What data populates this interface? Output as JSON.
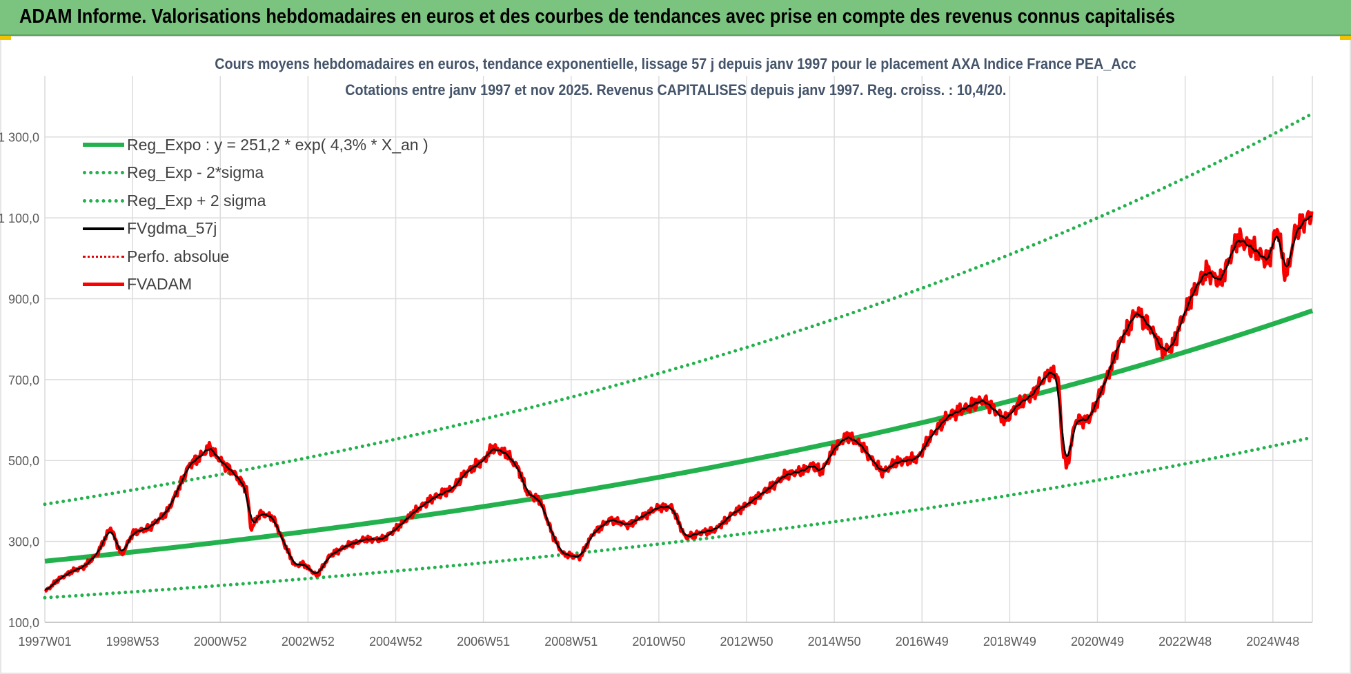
{
  "banner": {
    "title": "ADAM Informe. Valorisations hebdomadaires en euros et des courbes de tendances avec prise en compte des revenus connus capitalisés"
  },
  "chart_data": {
    "type": "line",
    "title": "Cours moyens hebdomadaires en euros, tendance exponentielle, lissage 57 j depuis janv 1997 pour le placement AXA Indice France PEA_Acc",
    "subtitle": "Cotations entre janv 1997 et nov 2025. Revenus CAPITALISES depuis janv 1997. Reg. croiss. : 10,4/20.",
    "xlabel": "",
    "ylabel": "",
    "x_range": [
      1997.0,
      2025.9
    ],
    "ylim": [
      100,
      1400
    ],
    "yticks": [
      100,
      300,
      500,
      700,
      900,
      1100,
      1300
    ],
    "ytick_labels": [
      "100,0",
      "300,0",
      "500,0",
      "700,0",
      "900,0",
      "1 100,0",
      "1 300,0"
    ],
    "xtick_positions": [
      1997.0,
      1999.0,
      2001.0,
      2003.0,
      2005.0,
      2007.0,
      2009.0,
      2011.0,
      2013.0,
      2015.0,
      2017.0,
      2019.0,
      2021.0,
      2023.0,
      2025.0
    ],
    "xtick_labels": [
      "1997W01",
      "1998W53",
      "2000W52",
      "2002W52",
      "2004W52",
      "2006W51",
      "2008W51",
      "2010W50",
      "2012W50",
      "2014W50",
      "2016W49",
      "2018W49",
      "2020W49",
      "2022W48",
      "2024W48"
    ],
    "grid": true,
    "legend_position": "top-left",
    "regression": {
      "a": 251.2,
      "rate": 0.043,
      "lower_factor": 0.64,
      "upper_factor": 1.56
    },
    "series": [
      {
        "name": "Reg_Expo : y = 251,2 * exp( 4,3% *  X_an )",
        "color": "#22b14c",
        "style": "solid-thick",
        "kind": "reg"
      },
      {
        "name": "Reg_Exp - 2*sigma",
        "color": "#22b14c",
        "style": "dotted",
        "kind": "reg_lower"
      },
      {
        "name": "Reg_Exp + 2 sigma",
        "color": "#22b14c",
        "style": "dotted",
        "kind": "reg_upper"
      },
      {
        "name": "FVgdma_57j",
        "color": "#000000",
        "style": "solid",
        "kind": "smooth"
      },
      {
        "name": "Perfo. absolue",
        "color": "#e00000",
        "style": "dotted-thin",
        "kind": "perf"
      },
      {
        "name": "FVADAM",
        "color": "#ff0000",
        "style": "solid",
        "kind": "price"
      }
    ],
    "price_points": [
      [
        1997.0,
        175
      ],
      [
        1997.3,
        205
      ],
      [
        1997.6,
        225
      ],
      [
        1997.9,
        238
      ],
      [
        1998.2,
        270
      ],
      [
        1998.5,
        335
      ],
      [
        1998.75,
        265
      ],
      [
        1999.0,
        320
      ],
      [
        1999.4,
        335
      ],
      [
        1999.8,
        375
      ],
      [
        2000.0,
        420
      ],
      [
        2000.3,
        490
      ],
      [
        2000.6,
        515
      ],
      [
        2000.75,
        535
      ],
      [
        2001.0,
        500
      ],
      [
        2001.3,
        470
      ],
      [
        2001.6,
        430
      ],
      [
        2001.7,
        330
      ],
      [
        2001.9,
        370
      ],
      [
        2002.2,
        360
      ],
      [
        2002.5,
        285
      ],
      [
        2002.7,
        240
      ],
      [
        2002.9,
        245
      ],
      [
        2003.2,
        215
      ],
      [
        2003.5,
        265
      ],
      [
        2003.9,
        290
      ],
      [
        2004.3,
        305
      ],
      [
        2004.7,
        305
      ],
      [
        2005.0,
        330
      ],
      [
        2005.5,
        380
      ],
      [
        2005.9,
        410
      ],
      [
        2006.3,
        430
      ],
      [
        2006.6,
        470
      ],
      [
        2007.0,
        500
      ],
      [
        2007.2,
        530
      ],
      [
        2007.5,
        520
      ],
      [
        2007.8,
        480
      ],
      [
        2008.0,
        420
      ],
      [
        2008.3,
        400
      ],
      [
        2008.6,
        310
      ],
      [
        2008.8,
        270
      ],
      [
        2009.2,
        260
      ],
      [
        2009.5,
        320
      ],
      [
        2009.9,
        355
      ],
      [
        2010.3,
        340
      ],
      [
        2010.6,
        360
      ],
      [
        2011.0,
        385
      ],
      [
        2011.3,
        385
      ],
      [
        2011.6,
        310
      ],
      [
        2011.9,
        320
      ],
      [
        2012.3,
        330
      ],
      [
        2012.7,
        370
      ],
      [
        2013.0,
        390
      ],
      [
        2013.5,
        430
      ],
      [
        2013.9,
        465
      ],
      [
        2014.3,
        475
      ],
      [
        2014.5,
        490
      ],
      [
        2014.7,
        470
      ],
      [
        2015.0,
        530
      ],
      [
        2015.3,
        560
      ],
      [
        2015.6,
        540
      ],
      [
        2015.8,
        510
      ],
      [
        2016.1,
        470
      ],
      [
        2016.4,
        495
      ],
      [
        2016.9,
        505
      ],
      [
        2017.2,
        560
      ],
      [
        2017.6,
        610
      ],
      [
        2018.0,
        630
      ],
      [
        2018.4,
        650
      ],
      [
        2018.9,
        600
      ],
      [
        2019.2,
        640
      ],
      [
        2019.5,
        660
      ],
      [
        2019.9,
        720
      ],
      [
        2020.1,
        710
      ],
      [
        2020.2,
        540
      ],
      [
        2020.3,
        480
      ],
      [
        2020.5,
        600
      ],
      [
        2020.8,
        600
      ],
      [
        2021.2,
        700
      ],
      [
        2021.5,
        790
      ],
      [
        2021.9,
        870
      ],
      [
        2022.2,
        830
      ],
      [
        2022.5,
        770
      ],
      [
        2022.7,
        780
      ],
      [
        2022.9,
        840
      ],
      [
        2023.2,
        920
      ],
      [
        2023.5,
        970
      ],
      [
        2023.8,
        940
      ],
      [
        2024.2,
        1050
      ],
      [
        2024.6,
        1020
      ],
      [
        2024.9,
        990
      ],
      [
        2025.1,
        1080
      ],
      [
        2025.3,
        950
      ],
      [
        2025.5,
        1060
      ],
      [
        2025.7,
        1090
      ],
      [
        2025.9,
        1110
      ]
    ]
  }
}
